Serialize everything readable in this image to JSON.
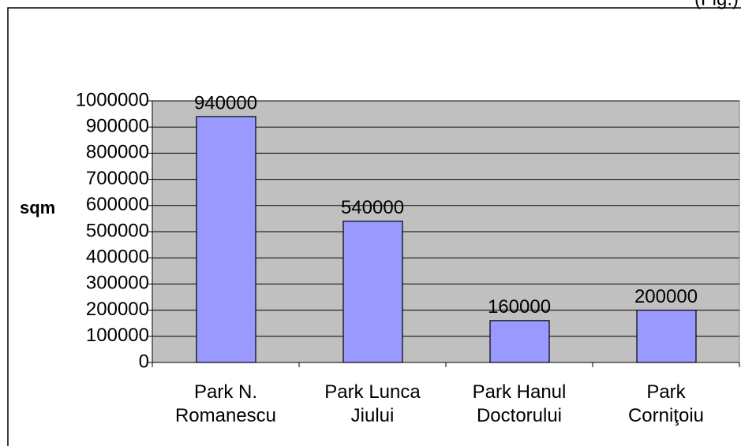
{
  "chart_data": {
    "type": "bar",
    "annotation": "(Fig.)",
    "y_label": "sqm",
    "categories": [
      "Park N. Romanescu",
      "Park Lunca Jiului",
      "Park Hanul Doctorului",
      "Park Corniţoiu"
    ],
    "values": [
      940000,
      540000,
      160000,
      200000
    ],
    "color": "#9999ff",
    "ylim": [
      0,
      1000000
    ],
    "yticks": [
      0,
      100000,
      200000,
      300000,
      400000,
      500000,
      600000,
      700000,
      800000,
      900000,
      1000000
    ],
    "grid": true
  }
}
